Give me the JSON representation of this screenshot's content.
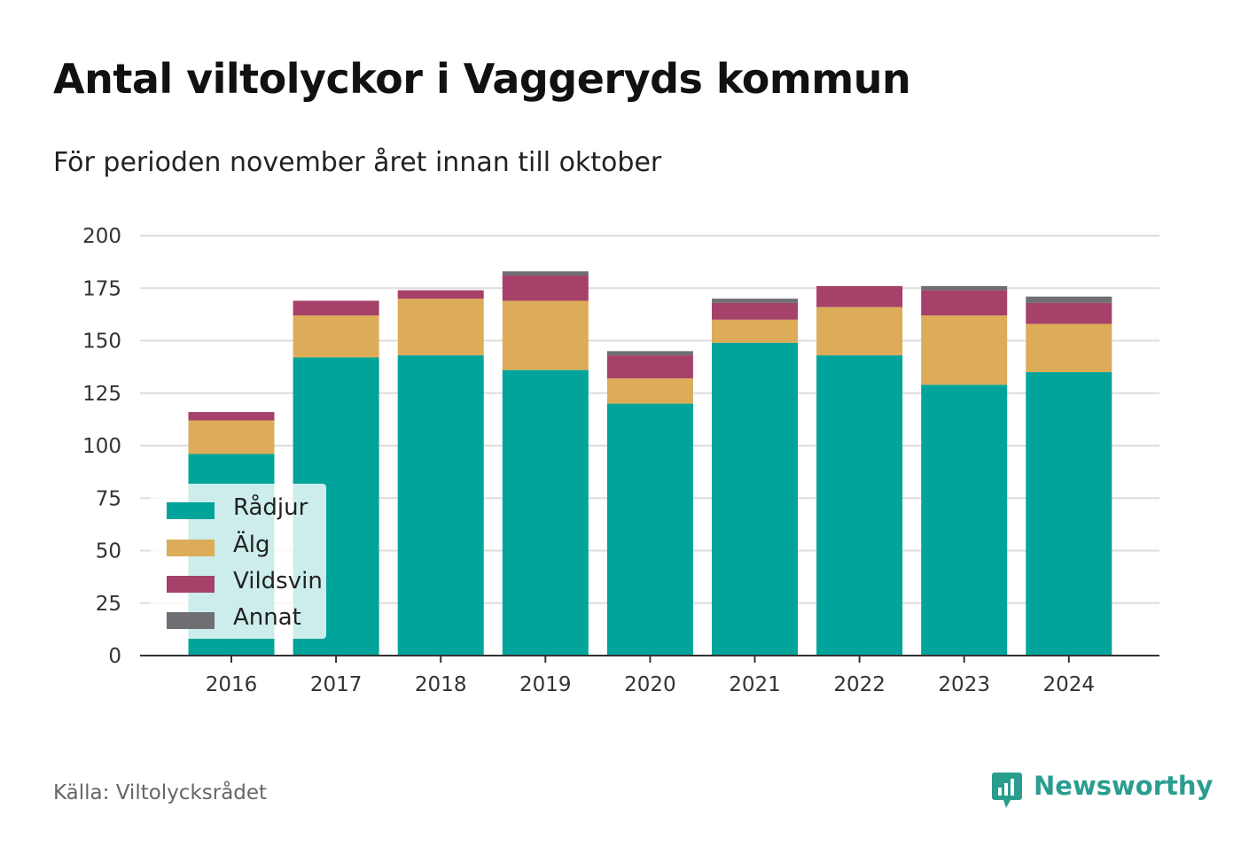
{
  "header": {
    "title": "Antal viltolyckor i Vaggeryds kommun",
    "subtitle": "För perioden november året innan till oktober"
  },
  "footer": {
    "source": "Källa: Viltolycksrådet",
    "brand": "Newsworthy",
    "brand_icon": "bar-chart-speech-bubble-icon",
    "brand_color": "#2a9d8f"
  },
  "chart_data": {
    "type": "bar",
    "stacked": true,
    "title": "",
    "xlabel": "",
    "ylabel": "",
    "categories": [
      "2016",
      "2017",
      "2018",
      "2019",
      "2020",
      "2021",
      "2022",
      "2023",
      "2024"
    ],
    "series": [
      {
        "name": "Rådjur",
        "color": "#00a49a",
        "values": [
          96,
          142,
          143,
          136,
          120,
          149,
          143,
          129,
          135
        ]
      },
      {
        "name": "Älg",
        "color": "#dcac59",
        "values": [
          16,
          20,
          27,
          33,
          12,
          11,
          23,
          33,
          23
        ]
      },
      {
        "name": "Vildsvin",
        "color": "#a6416a",
        "values": [
          4,
          7,
          4,
          12,
          11,
          8,
          10,
          12,
          10
        ]
      },
      {
        "name": "Annat",
        "color": "#6e6e73",
        "values": [
          0,
          0,
          0,
          2,
          2,
          2,
          0,
          2,
          3
        ]
      }
    ],
    "ylim": [
      0,
      200
    ],
    "yticks": [
      0,
      25,
      50,
      75,
      100,
      125,
      150,
      175,
      200
    ],
    "grid": true,
    "legend_position": "bottom-left"
  }
}
